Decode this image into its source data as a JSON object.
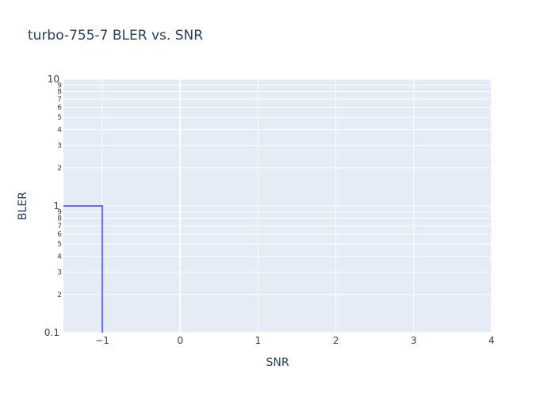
{
  "chart_data": {
    "type": "line",
    "title": "turbo-755-7 BLER vs. SNR",
    "xlabel": "SNR",
    "ylabel": "BLER",
    "xlim": [
      -1.5,
      4
    ],
    "ylim": [
      0.1,
      10
    ],
    "y_scale": "log",
    "x_ticks": [
      "−1",
      "0",
      "1",
      "2",
      "3",
      "4"
    ],
    "x_tick_values": [
      -1,
      0,
      1,
      2,
      3,
      4
    ],
    "y_major_ticks": [
      "0.1",
      "1",
      "10"
    ],
    "y_major_tick_values": [
      0.1,
      1,
      10
    ],
    "y_minor_ticks": [
      "2",
      "3",
      "4",
      "5",
      "6",
      "7",
      "8",
      "9",
      "2",
      "3",
      "4",
      "5",
      "6",
      "7",
      "8",
      "9"
    ],
    "y_minor_tick_values": [
      0.2,
      0.3,
      0.4,
      0.5,
      0.6,
      0.7,
      0.8,
      0.9,
      2,
      3,
      4,
      5,
      6,
      7,
      8,
      9
    ],
    "grid": true,
    "background_color": "#e5ecf6",
    "series": [
      {
        "color": "#636efa",
        "x": [
          -1.5,
          -1,
          -1
        ],
        "y": [
          1,
          1,
          0.1
        ]
      }
    ]
  }
}
